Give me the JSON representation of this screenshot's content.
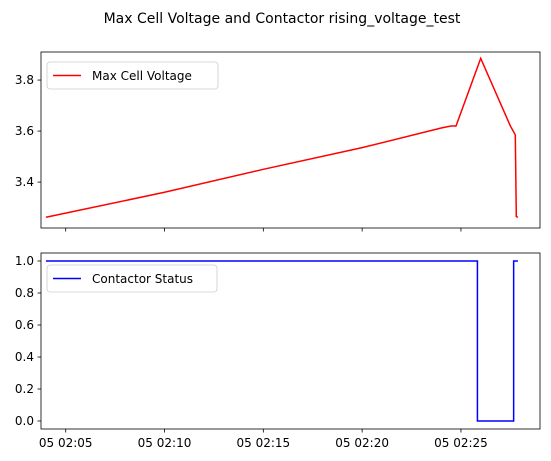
{
  "figure": {
    "title": "Max Cell Voltage and Contactor rising_voltage_test"
  },
  "chart_data": [
    {
      "type": "line",
      "x_axis": "time",
      "xlim": [
        "02:03:45",
        "02:29:00"
      ],
      "ylim": [
        3.22,
        3.91
      ],
      "y_ticks": [
        "3.4",
        "3.6",
        "3.8"
      ],
      "x_ticks": [],
      "legend": {
        "placement": "top-left"
      },
      "series": [
        {
          "name": "Max Cell Voltage",
          "color": "#ff0000",
          "x": [
            "02:04:00",
            "02:10:00",
            "02:15:00",
            "02:20:00",
            "02:24:00",
            "02:24:30",
            "02:24:45",
            "02:26:00",
            "02:27:30",
            "02:27:45",
            "02:27:48",
            "02:27:53"
          ],
          "y": [
            3.262,
            3.36,
            3.45,
            3.535,
            3.612,
            3.62,
            3.62,
            3.885,
            3.62,
            3.585,
            3.265,
            3.262
          ]
        }
      ]
    },
    {
      "type": "line",
      "x_axis": "time",
      "xlim": [
        "02:03:45",
        "02:29:00"
      ],
      "ylim": [
        -0.05,
        1.05
      ],
      "y_ticks": [
        "0.0",
        "0.2",
        "0.4",
        "0.6",
        "0.8",
        "1.0"
      ],
      "x_ticks": [
        "05 02:05",
        "05 02:10",
        "05 02:15",
        "05 02:20",
        "05 02:25"
      ],
      "legend": {
        "placement": "top-left"
      },
      "series": [
        {
          "name": "Contactor Status",
          "color": "#0000ff",
          "x": [
            "02:04:00",
            "02:25:50",
            "02:25:50",
            "02:27:40",
            "02:27:40",
            "02:27:53"
          ],
          "y": [
            1,
            1,
            0,
            0,
            1,
            1
          ]
        }
      ]
    }
  ]
}
